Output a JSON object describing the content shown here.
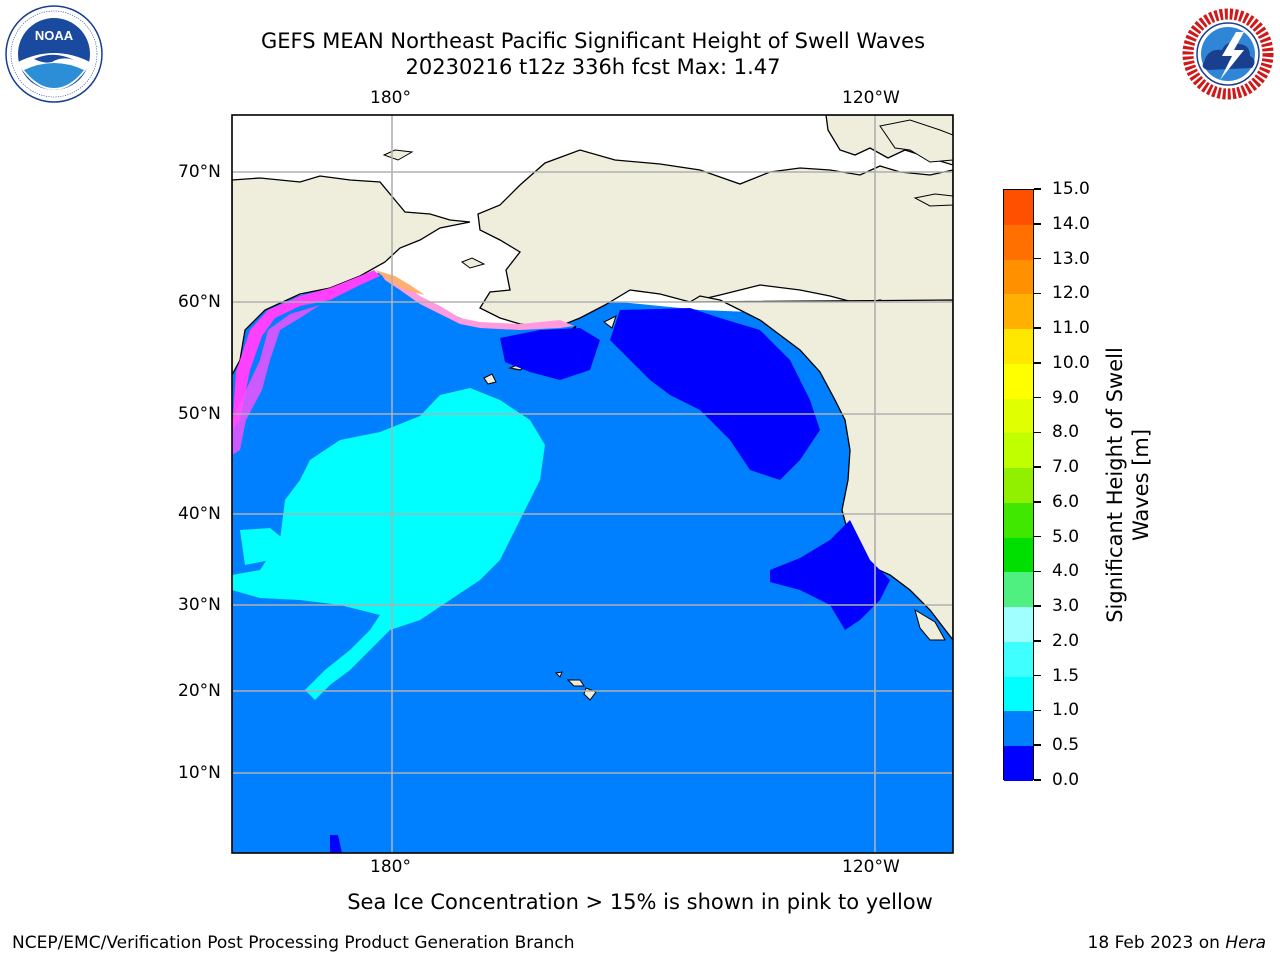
{
  "title": {
    "line1": "GEFS MEAN Northeast Pacific Significant Height of Swell Waves",
    "line2": "20230216 t12z 336h fcst   Max: 1.47"
  },
  "logos": {
    "left": {
      "icon": "noaa-logo",
      "text": "NOAA"
    },
    "right": {
      "icon": "nws-logo",
      "text": "NATIONAL WEATHER SERVICE"
    }
  },
  "map": {
    "lon_labels_top": [
      "180°",
      "120°W"
    ],
    "lon_labels_bottom": [
      "180°",
      "120°W"
    ],
    "lat_labels": [
      "70°N",
      "60°N",
      "50°N",
      "40°N",
      "30°N",
      "20°N",
      "10°N"
    ],
    "colors": {
      "land": "#efeedc",
      "ocean_0_5_1_0": "#0080ff",
      "ocean_0_0_5": "#0000ff",
      "swell_1_0_1_5": "#00ffff",
      "swell_1_5_2_0": "#40ffff",
      "sea_ice": "#ff40ff",
      "grid": "#b0b0b0"
    }
  },
  "colorbar": {
    "label": "Significant Height of Swell Waves [m]",
    "label_line1": "Significant Height of Swell",
    "label_line2": "Waves [m]",
    "ticks": [
      "15.0",
      "14.0",
      "13.0",
      "12.0",
      "11.0",
      "10.0",
      "9.0",
      "8.0",
      "7.0",
      "6.0",
      "5.0",
      "4.0",
      "3.0",
      "2.0",
      "1.5",
      "1.0",
      "0.5",
      "0.0"
    ],
    "colors_top_to_bottom": [
      "#ff0000",
      "#ff2000",
      "#ff5000",
      "#ff7000",
      "#ff9000",
      "#ffb000",
      "#ffe800",
      "#ffff00",
      "#e0ff00",
      "#c0ff00",
      "#90f000",
      "#40e800",
      "#00e000",
      "#50f080",
      "#a0ffff",
      "#40ffff",
      "#00ffff",
      "#0080ff",
      "#0000ff"
    ]
  },
  "note": "Sea Ice Concentration > 15% is shown in pink to yellow",
  "footer": {
    "left": "NCEP/EMC/Verification Post Processing Product Generation Branch",
    "right_prefix": "18 Feb 2023 on ",
    "right_italic": "Hera"
  }
}
